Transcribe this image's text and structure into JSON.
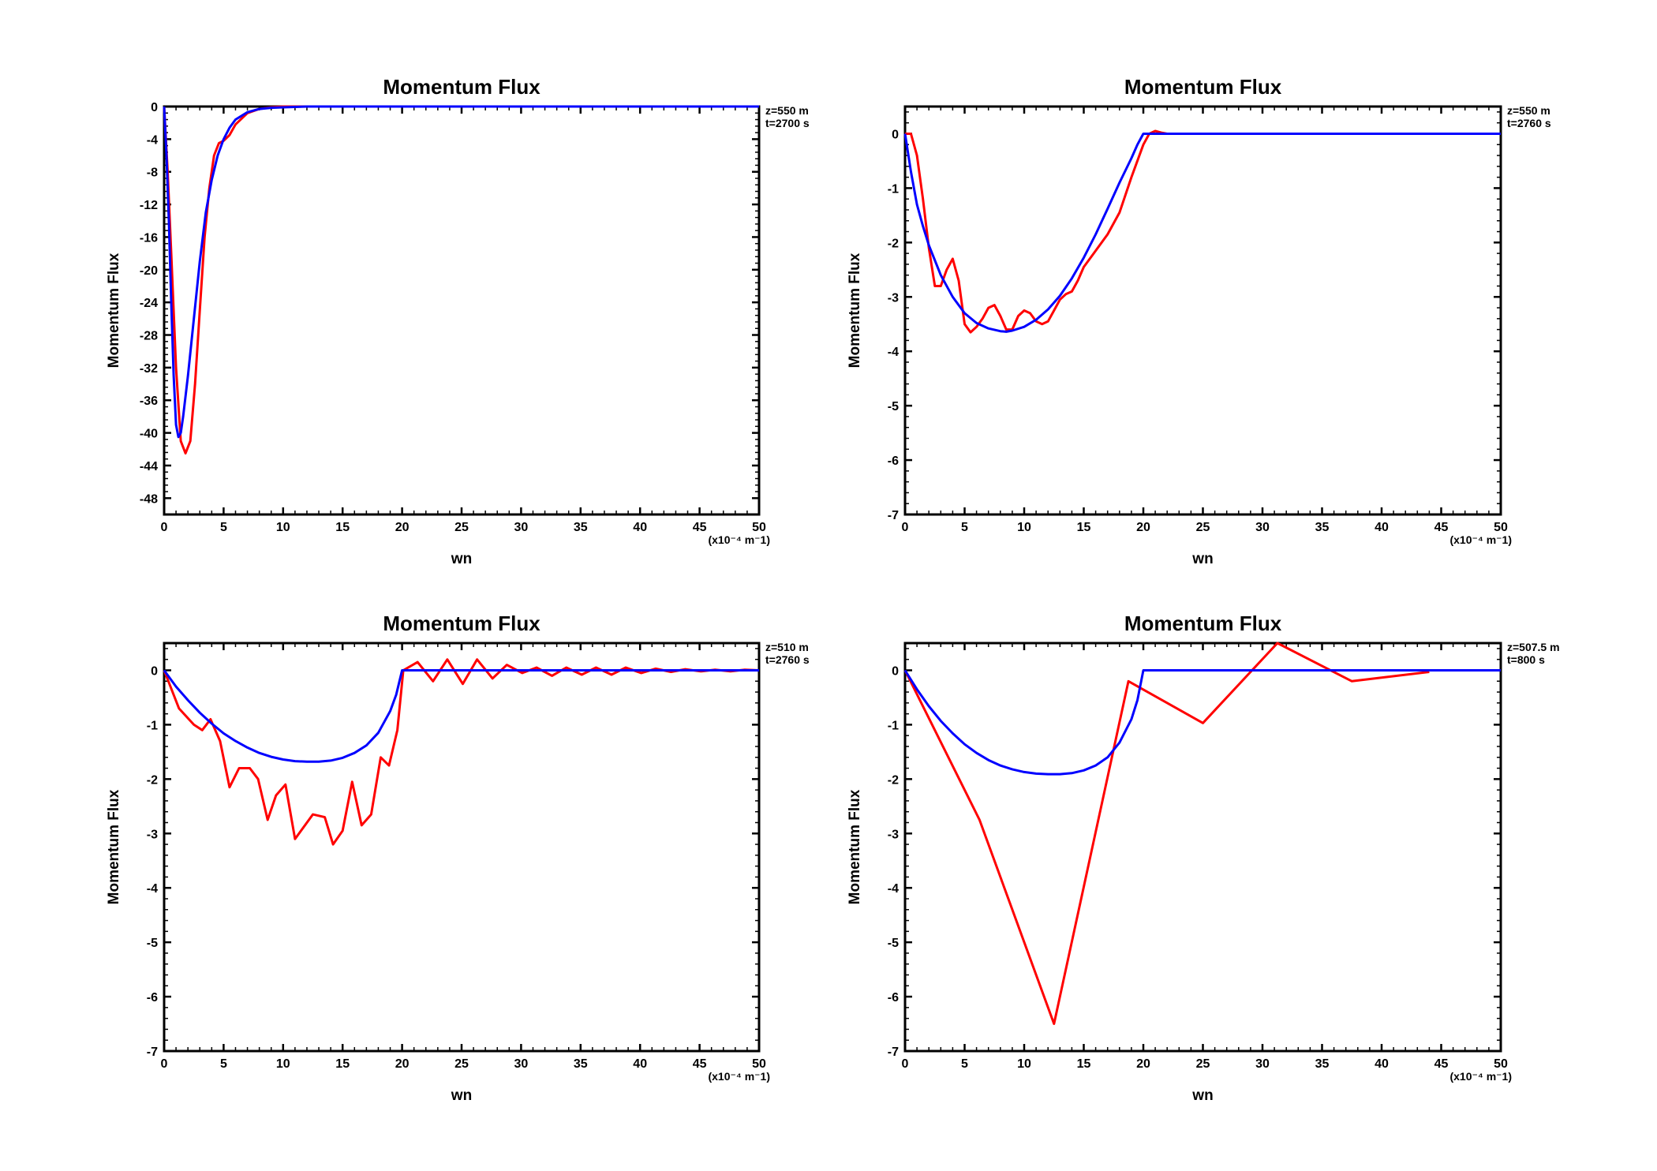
{
  "chart_data": [
    {
      "type": "line",
      "title": "Momentum Flux",
      "xlabel": "wn",
      "ylabel": "Momentum Flux",
      "xunit": "(x10⁻⁴ m⁻1)",
      "annotations": [
        "z=550 m",
        "t=2700 s"
      ],
      "xlim": [
        0,
        50
      ],
      "ylim": [
        -50,
        0
      ],
      "xticks": [
        0,
        5,
        10,
        15,
        20,
        25,
        30,
        35,
        40,
        45,
        50
      ],
      "yticks": [
        0,
        -4,
        -8,
        -12,
        -16,
        -20,
        -24,
        -28,
        -32,
        -36,
        -40,
        -44,
        -48
      ],
      "series": [
        {
          "color": "#ff0000",
          "x": [
            0,
            0.3,
            0.6,
            1.0,
            1.4,
            1.8,
            2.2,
            2.6,
            3.0,
            3.4,
            3.8,
            4.2,
            4.6,
            5.0,
            5.5,
            6,
            7,
            8,
            9,
            10,
            15,
            20,
            50
          ],
          "y": [
            0,
            -8,
            -18,
            -32,
            -41,
            -42.5,
            -41,
            -34,
            -25,
            -16,
            -10,
            -6,
            -4.5,
            -4.2,
            -3.5,
            -2.2,
            -0.8,
            -0.3,
            -0.1,
            0,
            0,
            0,
            0
          ]
        },
        {
          "color": "#0000ff",
          "x": [
            0,
            0.2,
            0.4,
            0.6,
            0.8,
            1.0,
            1.2,
            1.4,
            1.6,
            2.0,
            2.5,
            3.0,
            3.5,
            4.0,
            4.5,
            5.0,
            5.5,
            6,
            7,
            8,
            9,
            10,
            12,
            15,
            50
          ],
          "y": [
            0,
            -6,
            -14,
            -24,
            -33,
            -39,
            -40.5,
            -40,
            -38,
            -33,
            -26,
            -19,
            -13,
            -9,
            -6,
            -4,
            -2.6,
            -1.6,
            -0.7,
            -0.3,
            -0.15,
            -0.1,
            0,
            0,
            0
          ]
        }
      ]
    },
    {
      "type": "line",
      "title": "Momentum Flux",
      "xlabel": "wn",
      "ylabel": "Momentum Flux",
      "xunit": "(x10⁻⁴ m⁻1)",
      "annotations": [
        "z=550 m",
        "t=2760 s"
      ],
      "xlim": [
        0,
        50
      ],
      "ylim": [
        -7,
        0.5
      ],
      "xticks": [
        0,
        5,
        10,
        15,
        20,
        25,
        30,
        35,
        40,
        45,
        50
      ],
      "yticks": [
        0,
        -1,
        -2,
        -3,
        -4,
        -5,
        -6,
        -7
      ],
      "series": [
        {
          "color": "#ff0000",
          "x": [
            0,
            0.5,
            1,
            1.5,
            2,
            2.5,
            3,
            3.5,
            4,
            4.5,
            5,
            5.5,
            6,
            6.5,
            7,
            7.5,
            8,
            8.5,
            9,
            9.5,
            10,
            10.5,
            11,
            11.5,
            12,
            12.5,
            13,
            13.5,
            14,
            14.5,
            15,
            16,
            17,
            18,
            19,
            20,
            20.5,
            21,
            21.5,
            22,
            25,
            28,
            31,
            35
          ],
          "y": [
            0,
            0,
            -0.4,
            -1.2,
            -2.1,
            -2.8,
            -2.8,
            -2.5,
            -2.3,
            -2.7,
            -3.5,
            -3.65,
            -3.55,
            -3.4,
            -3.2,
            -3.15,
            -3.35,
            -3.6,
            -3.6,
            -3.35,
            -3.25,
            -3.3,
            -3.45,
            -3.5,
            -3.45,
            -3.25,
            -3.05,
            -2.95,
            -2.9,
            -2.7,
            -2.45,
            -2.15,
            -1.85,
            -1.45,
            -0.8,
            -0.2,
            0,
            0.05,
            0.02,
            0,
            0,
            0,
            0,
            0
          ]
        },
        {
          "color": "#0000ff",
          "x": [
            0,
            0.5,
            1,
            1.5,
            2,
            3,
            4,
            5,
            6,
            7,
            8,
            8.5,
            9,
            10,
            11,
            12,
            13,
            14,
            15,
            16,
            17,
            18,
            19,
            19.5,
            19.8,
            20,
            20.05,
            50
          ],
          "y": [
            0,
            -0.7,
            -1.3,
            -1.7,
            -2.05,
            -2.6,
            -3.0,
            -3.3,
            -3.48,
            -3.58,
            -3.63,
            -3.64,
            -3.62,
            -3.55,
            -3.42,
            -3.23,
            -2.98,
            -2.66,
            -2.28,
            -1.85,
            -1.38,
            -0.9,
            -0.45,
            -0.2,
            -0.08,
            0,
            0,
            0
          ]
        }
      ]
    },
    {
      "type": "line",
      "title": "Momentum Flux",
      "xlabel": "wn",
      "ylabel": "Momentum Flux",
      "xunit": "(x10⁻⁴ m⁻1)",
      "annotations": [
        "z=510 m",
        "t=2760 s"
      ],
      "xlim": [
        0,
        50
      ],
      "ylim": [
        -7,
        0.5
      ],
      "xticks": [
        0,
        5,
        10,
        15,
        20,
        25,
        30,
        35,
        40,
        45,
        50
      ],
      "yticks": [
        0,
        -1,
        -2,
        -3,
        -4,
        -5,
        -6,
        -7
      ],
      "series": [
        {
          "color": "#ff0000",
          "x": [
            0,
            1.25,
            2.5,
            3.2,
            3.9,
            4.7,
            5.5,
            6.3,
            7.2,
            7.9,
            8.7,
            9.4,
            10.2,
            11.0,
            12.5,
            13.5,
            14.2,
            15.0,
            15.8,
            16.6,
            17.4,
            18.2,
            18.9,
            19.6,
            20.1,
            21.3,
            22.6,
            23.8,
            25.1,
            26.3,
            27.6,
            28.8,
            30.1,
            31.3,
            32.6,
            33.8,
            35.1,
            36.3,
            37.6,
            38.8,
            40.1,
            41.3,
            42.6,
            43.8,
            45.1,
            46.3,
            47.6,
            48.8,
            50
          ],
          "y": [
            0,
            -0.7,
            -1.0,
            -1.1,
            -0.9,
            -1.3,
            -2.15,
            -1.8,
            -1.8,
            -2.0,
            -2.75,
            -2.3,
            -2.1,
            -3.1,
            -2.65,
            -2.7,
            -3.2,
            -2.95,
            -2.05,
            -2.85,
            -2.65,
            -1.6,
            -1.75,
            -1.1,
            0,
            0.15,
            -0.2,
            0.2,
            -0.25,
            0.2,
            -0.15,
            0.1,
            -0.05,
            0.05,
            -0.1,
            0.05,
            -0.08,
            0.05,
            -0.08,
            0.05,
            -0.05,
            0.03,
            -0.03,
            0.02,
            -0.02,
            0.01,
            -0.02,
            0.01,
            0
          ]
        },
        {
          "color": "#0000ff",
          "x": [
            0,
            1,
            2,
            3,
            4,
            5,
            6,
            7,
            8,
            9,
            10,
            11,
            12,
            13,
            14,
            15,
            16,
            17,
            18,
            19,
            19.5,
            20,
            20.05,
            50
          ],
          "y": [
            0,
            -0.3,
            -0.55,
            -0.78,
            -0.98,
            -1.16,
            -1.3,
            -1.42,
            -1.52,
            -1.59,
            -1.64,
            -1.67,
            -1.68,
            -1.68,
            -1.66,
            -1.61,
            -1.52,
            -1.38,
            -1.15,
            -0.75,
            -0.45,
            0,
            0,
            0
          ]
        }
      ]
    },
    {
      "type": "line",
      "title": "Momentum Flux",
      "xlabel": "wn",
      "ylabel": "Momentum Flux",
      "xunit": "(x10⁻⁴ m⁻1)",
      "annotations": [
        "z=507.5 m",
        "t=800 s"
      ],
      "xlim": [
        0,
        50
      ],
      "ylim": [
        -7,
        0.5
      ],
      "xticks": [
        0,
        5,
        10,
        15,
        20,
        25,
        30,
        35,
        40,
        45,
        50
      ],
      "yticks": [
        0,
        -1,
        -2,
        -3,
        -4,
        -5,
        -6,
        -7
      ],
      "series": [
        {
          "color": "#ff0000",
          "x": [
            0,
            6.25,
            12.5,
            18.75,
            25,
            31.25,
            37.5,
            44
          ],
          "y": [
            0,
            -2.75,
            -6.5,
            -0.2,
            -0.97,
            0.5,
            -0.2,
            -0.03
          ]
        },
        {
          "color": "#0000ff",
          "x": [
            0,
            1,
            2,
            3,
            4,
            5,
            6,
            7,
            8,
            9,
            10,
            11,
            12,
            13,
            14,
            15,
            16,
            17,
            18,
            19,
            19.5,
            20,
            20.05,
            50
          ],
          "y": [
            0,
            -0.35,
            -0.66,
            -0.93,
            -1.16,
            -1.36,
            -1.52,
            -1.65,
            -1.75,
            -1.82,
            -1.87,
            -1.9,
            -1.91,
            -1.91,
            -1.89,
            -1.84,
            -1.75,
            -1.6,
            -1.33,
            -0.9,
            -0.55,
            0,
            0,
            0
          ]
        }
      ]
    }
  ]
}
